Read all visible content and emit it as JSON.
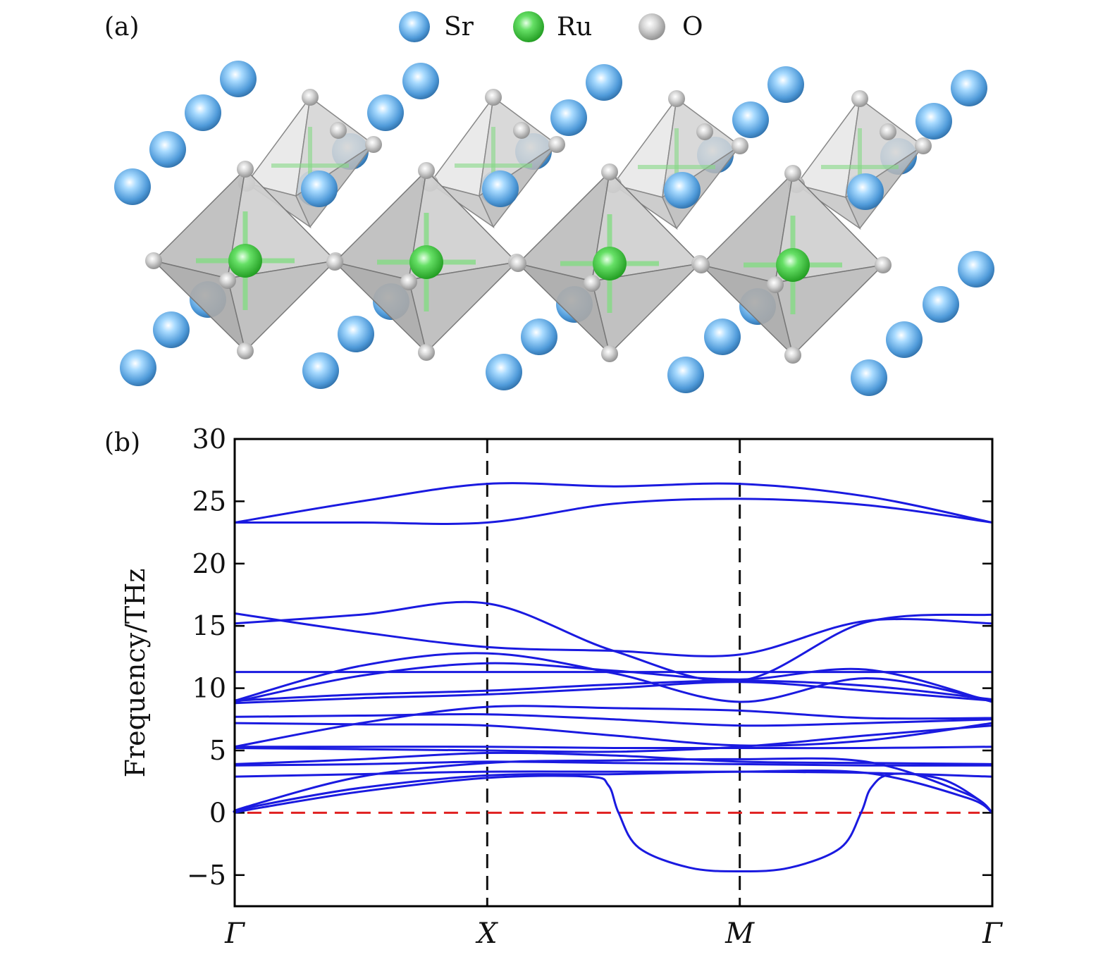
{
  "panel_a": {
    "label": "(a)",
    "legend": [
      {
        "symbol": "Sr",
        "color": "#4f9ad9"
      },
      {
        "symbol": "Ru",
        "color": "#3ad13a"
      },
      {
        "symbol": "O",
        "color": "#c8c8c8"
      }
    ]
  },
  "panel_b": {
    "label": "(b)"
  },
  "chart_data": {
    "type": "line",
    "title": "",
    "xlabel": "",
    "ylabel": "Frequency/THz",
    "ylim": [
      -7.5,
      30
    ],
    "xlim": [
      0,
      3
    ],
    "yticks": [
      -5,
      0,
      5,
      10,
      15,
      20,
      25,
      30
    ],
    "ytick_labels": [
      "−5",
      "0",
      "5",
      "10",
      "15",
      "20",
      "25",
      "30"
    ],
    "high_symmetry_points": [
      {
        "label": "Γ",
        "x": 0
      },
      {
        "label": "X",
        "x": 1
      },
      {
        "label": "M",
        "x": 2
      },
      {
        "label": "Γ",
        "x": 3
      }
    ],
    "zero_line": {
      "y": 0,
      "color": "#e02020",
      "style": "dashed"
    },
    "band_color": "#1a1ae0",
    "series": [
      {
        "name": "band-1",
        "points": [
          [
            0,
            0
          ],
          [
            0.1,
            0.4
          ],
          [
            0.5,
            1.7
          ],
          [
            1,
            2.8
          ],
          [
            1.4,
            2.9
          ],
          [
            1.48,
            2.2
          ],
          [
            1.52,
            0
          ],
          [
            1.6,
            -2.8
          ],
          [
            1.8,
            -4.4
          ],
          [
            2,
            -4.7
          ],
          [
            2.2,
            -4.4
          ],
          [
            2.4,
            -2.8
          ],
          [
            2.48,
            0
          ],
          [
            2.52,
            2
          ],
          [
            2.6,
            3.1
          ],
          [
            2.8,
            2.7
          ],
          [
            2.95,
            1
          ],
          [
            3,
            0
          ]
        ]
      },
      {
        "name": "band-2",
        "points": [
          [
            0,
            0
          ],
          [
            0.1,
            0.6
          ],
          [
            0.5,
            2
          ],
          [
            1,
            3
          ],
          [
            1.5,
            3.1
          ],
          [
            2,
            3.3
          ],
          [
            2.5,
            3.2
          ],
          [
            2.9,
            1.2
          ],
          [
            3,
            0
          ]
        ]
      },
      {
        "name": "band-3",
        "points": [
          [
            0,
            0
          ],
          [
            0.05,
            0.5
          ],
          [
            0.5,
            2.9
          ],
          [
            1,
            4
          ],
          [
            1.5,
            4.2
          ],
          [
            2,
            4.3
          ],
          [
            2.5,
            4.1
          ],
          [
            2.9,
            1.5
          ],
          [
            3,
            0
          ]
        ]
      },
      {
        "name": "band-4",
        "points": [
          [
            0,
            2.9
          ],
          [
            0.5,
            3.1
          ],
          [
            1,
            3.3
          ],
          [
            1.5,
            3.3
          ],
          [
            2,
            3.3
          ],
          [
            2.5,
            3.2
          ],
          [
            3,
            2.9
          ]
        ]
      },
      {
        "name": "band-5",
        "points": [
          [
            0,
            3.8
          ],
          [
            0.5,
            3.9
          ],
          [
            1,
            4.1
          ],
          [
            1.5,
            4
          ],
          [
            2,
            3.9
          ],
          [
            2.5,
            3.8
          ],
          [
            3,
            3.8
          ]
        ]
      },
      {
        "name": "band-6",
        "points": [
          [
            0,
            3.9
          ],
          [
            0.5,
            4.3
          ],
          [
            1,
            4.8
          ],
          [
            1.5,
            4.6
          ],
          [
            2,
            4.1
          ],
          [
            2.5,
            4
          ],
          [
            3,
            3.9
          ]
        ]
      },
      {
        "name": "band-7",
        "points": [
          [
            0,
            5.2
          ],
          [
            0.5,
            5.1
          ],
          [
            1,
            5
          ],
          [
            1.5,
            4.9
          ],
          [
            2,
            5.3
          ],
          [
            2.5,
            6.2
          ],
          [
            3,
            7
          ]
        ]
      },
      {
        "name": "band-8",
        "points": [
          [
            0,
            5.3
          ],
          [
            0.5,
            5.3
          ],
          [
            1,
            5.3
          ],
          [
            1.5,
            5.2
          ],
          [
            2,
            5.2
          ],
          [
            2.5,
            5.2
          ],
          [
            3,
            5.3
          ]
        ]
      },
      {
        "name": "band-9",
        "points": [
          [
            0,
            7.2
          ],
          [
            0.5,
            7.1
          ],
          [
            1,
            7
          ],
          [
            1.5,
            6.2
          ],
          [
            2,
            5.4
          ],
          [
            2.5,
            5.8
          ],
          [
            3,
            7.2
          ]
        ]
      },
      {
        "name": "band-10",
        "points": [
          [
            0,
            7.7
          ],
          [
            0.5,
            7.8
          ],
          [
            1,
            7.9
          ],
          [
            1.5,
            7.5
          ],
          [
            2,
            7
          ],
          [
            2.5,
            7.2
          ],
          [
            3,
            7.5
          ]
        ]
      },
      {
        "name": "band-11",
        "points": [
          [
            0,
            5.3
          ],
          [
            0.5,
            7.2
          ],
          [
            1,
            8.5
          ],
          [
            1.5,
            8.4
          ],
          [
            2,
            8.2
          ],
          [
            2.5,
            7.6
          ],
          [
            3,
            7.6
          ]
        ]
      },
      {
        "name": "band-12",
        "points": [
          [
            0,
            8.8
          ],
          [
            0.5,
            9.2
          ],
          [
            1,
            9.5
          ],
          [
            1.5,
            10
          ],
          [
            2,
            10.5
          ],
          [
            2.5,
            9.8
          ],
          [
            3,
            9
          ]
        ]
      },
      {
        "name": "band-13",
        "points": [
          [
            0,
            9
          ],
          [
            0.5,
            9.5
          ],
          [
            1,
            9.8
          ],
          [
            1.5,
            10.3
          ],
          [
            2,
            10.6
          ],
          [
            2.5,
            10.2
          ],
          [
            3,
            9.1
          ]
        ]
      },
      {
        "name": "band-14",
        "points": [
          [
            0,
            11.3
          ],
          [
            0.5,
            11.3
          ],
          [
            1,
            11.3
          ],
          [
            1.5,
            11.3
          ],
          [
            2,
            11.3
          ],
          [
            2.5,
            11.3
          ],
          [
            3,
            11.3
          ]
        ]
      },
      {
        "name": "band-15",
        "points": [
          [
            0,
            8.9
          ],
          [
            0.5,
            11
          ],
          [
            1,
            12
          ],
          [
            1.5,
            11.4
          ],
          [
            2,
            10.7
          ],
          [
            2.5,
            11.5
          ],
          [
            3,
            8.9
          ]
        ]
      },
      {
        "name": "band-16",
        "points": [
          [
            0,
            9
          ],
          [
            0.5,
            11.8
          ],
          [
            1,
            12.8
          ],
          [
            1.5,
            11.2
          ],
          [
            2,
            8.9
          ],
          [
            2.5,
            10.8
          ],
          [
            3,
            9
          ]
        ]
      },
      {
        "name": "band-17",
        "points": [
          [
            0,
            15.2
          ],
          [
            0.5,
            15.9
          ],
          [
            1,
            16.8
          ],
          [
            1.5,
            13
          ],
          [
            2,
            10.6
          ],
          [
            2.5,
            15.3
          ],
          [
            3,
            15.9
          ]
        ]
      },
      {
        "name": "band-18",
        "points": [
          [
            0,
            16
          ],
          [
            0.5,
            14.5
          ],
          [
            1,
            13.3
          ],
          [
            1.5,
            13
          ],
          [
            2,
            12.7
          ],
          [
            2.5,
            15.4
          ],
          [
            3,
            15.2
          ]
        ]
      },
      {
        "name": "band-19",
        "points": [
          [
            0,
            23.3
          ],
          [
            0.5,
            23.3
          ],
          [
            1,
            23.3
          ],
          [
            1.5,
            24.8
          ],
          [
            2,
            25.2
          ],
          [
            2.5,
            24.7
          ],
          [
            3,
            23.3
          ]
        ]
      },
      {
        "name": "band-20",
        "points": [
          [
            0,
            23.3
          ],
          [
            0.5,
            25
          ],
          [
            1,
            26.4
          ],
          [
            1.5,
            26.2
          ],
          [
            2,
            26.4
          ],
          [
            2.5,
            25.4
          ],
          [
            3,
            23.3
          ]
        ]
      }
    ]
  }
}
